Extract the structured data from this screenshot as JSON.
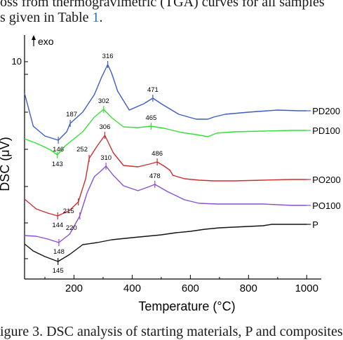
{
  "page": {
    "top_line": "oss from thermogravimetric (TGA) curves for all samples",
    "second_line_prefix": "s given in Table",
    "second_line_ref": "1",
    "second_line_suffix": ".",
    "bottom_line": "igure 3. DSC analysis of starting materials, P and composites"
  },
  "chart_data": {
    "type": "line",
    "xlabel": "Temperature (°C)",
    "ylabel": "DSC (μV)",
    "xlim": [
      30,
      1050
    ],
    "xticks": [
      "200",
      "400",
      "600",
      "800",
      "1000"
    ],
    "ytick_label": "10",
    "exo_label": "exo",
    "grid": false,
    "series": [
      {
        "name": "PD200",
        "color": "#3b5bc9",
        "points": [
          [
            30,
            133
          ],
          [
            60,
            180
          ],
          [
            100,
            194
          ],
          [
            146,
            200
          ],
          [
            175,
            188
          ],
          [
            187,
            176
          ],
          [
            230,
            160
          ],
          [
            270,
            135
          ],
          [
            295,
            110
          ],
          [
            316,
            92
          ],
          [
            330,
            105
          ],
          [
            350,
            130
          ],
          [
            390,
            157
          ],
          [
            440,
            148
          ],
          [
            471,
            140
          ],
          [
            500,
            148
          ],
          [
            560,
            163
          ],
          [
            620,
            170
          ],
          [
            660,
            170
          ],
          [
            680,
            167
          ],
          [
            720,
            163
          ],
          [
            800,
            160
          ],
          [
            900,
            157
          ],
          [
            970,
            158
          ],
          [
            1000,
            158
          ]
        ],
        "annotations": [
          {
            "x": 146,
            "label": "146"
          },
          {
            "x": 187,
            "label": "187"
          },
          {
            "x": 316,
            "label": "316"
          },
          {
            "x": 471,
            "label": "471"
          }
        ]
      },
      {
        "name": "PD100",
        "color": "#33e033",
        "points": [
          [
            30,
            198
          ],
          [
            80,
            206
          ],
          [
            120,
            214
          ],
          [
            143,
            221
          ],
          [
            170,
            208
          ],
          [
            230,
            188
          ],
          [
            270,
            167
          ],
          [
            302,
            156
          ],
          [
            330,
            168
          ],
          [
            370,
            181
          ],
          [
            420,
            182
          ],
          [
            465,
            180
          ],
          [
            510,
            183
          ],
          [
            570,
            189
          ],
          [
            620,
            192
          ],
          [
            660,
            195
          ],
          [
            690,
            190
          ],
          [
            750,
            188
          ],
          [
            850,
            187
          ],
          [
            950,
            186
          ],
          [
            1000,
            186
          ]
        ],
        "annotations": [
          {
            "x": 143,
            "label": "143"
          },
          {
            "x": 302,
            "label": "302"
          },
          {
            "x": 465,
            "label": "465"
          }
        ]
      },
      {
        "name": "PO200",
        "color": "#cc2e2e",
        "points": [
          [
            30,
            284
          ],
          [
            70,
            298
          ],
          [
            110,
            304
          ],
          [
            144,
            308
          ],
          [
            185,
            300
          ],
          [
            215,
            288
          ],
          [
            240,
            255
          ],
          [
            252,
            226
          ],
          [
            280,
            208
          ],
          [
            306,
            193
          ],
          [
            335,
            218
          ],
          [
            370,
            236
          ],
          [
            420,
            238
          ],
          [
            460,
            234
          ],
          [
            486,
            231
          ],
          [
            510,
            237
          ],
          [
            530,
            243
          ],
          [
            540,
            250
          ],
          [
            580,
            255
          ],
          [
            630,
            257
          ],
          [
            680,
            258
          ],
          [
            750,
            258
          ],
          [
            850,
            257
          ],
          [
            950,
            256
          ],
          [
            1000,
            256
          ]
        ],
        "annotations": [
          {
            "x": 144,
            "label": "144"
          },
          {
            "x": 215,
            "label": "215"
          },
          {
            "x": 252,
            "label": "252"
          },
          {
            "x": 306,
            "label": "306"
          },
          {
            "x": 486,
            "label": "486"
          }
        ]
      },
      {
        "name": "PO100",
        "color": "#8a4fd6",
        "points": [
          [
            30,
            336
          ],
          [
            70,
            337
          ],
          [
            110,
            341
          ],
          [
            148,
            346
          ],
          [
            185,
            334
          ],
          [
            220,
            308
          ],
          [
            245,
            275
          ],
          [
            270,
            252
          ],
          [
            295,
            243
          ],
          [
            310,
            237
          ],
          [
            335,
            250
          ],
          [
            370,
            265
          ],
          [
            420,
            272
          ],
          [
            460,
            266
          ],
          [
            478,
            263
          ],
          [
            520,
            273
          ],
          [
            580,
            285
          ],
          [
            630,
            290
          ],
          [
            690,
            291
          ],
          [
            750,
            291
          ],
          [
            850,
            291
          ],
          [
            950,
            293
          ],
          [
            1000,
            293
          ]
        ],
        "annotations": [
          {
            "x": 148,
            "label": "148"
          },
          {
            "x": 220,
            "label": "220"
          },
          {
            "x": 310,
            "label": "310"
          },
          {
            "x": 478,
            "label": "478"
          }
        ]
      },
      {
        "name": "P",
        "color": "#111111",
        "points": [
          [
            30,
            348
          ],
          [
            60,
            358
          ],
          [
            100,
            366
          ],
          [
            145,
            373
          ],
          [
            185,
            363
          ],
          [
            230,
            349
          ],
          [
            280,
            346
          ],
          [
            330,
            342
          ],
          [
            400,
            339
          ],
          [
            450,
            337
          ],
          [
            500,
            335
          ],
          [
            550,
            332
          ],
          [
            600,
            330
          ],
          [
            650,
            327
          ],
          [
            700,
            325
          ],
          [
            750,
            324
          ],
          [
            800,
            323
          ],
          [
            850,
            322
          ],
          [
            880,
            320
          ],
          [
            900,
            320
          ],
          [
            940,
            320
          ],
          [
            1000,
            320
          ]
        ],
        "annotations": [
          {
            "x": 145,
            "label": "145"
          }
        ]
      }
    ]
  }
}
